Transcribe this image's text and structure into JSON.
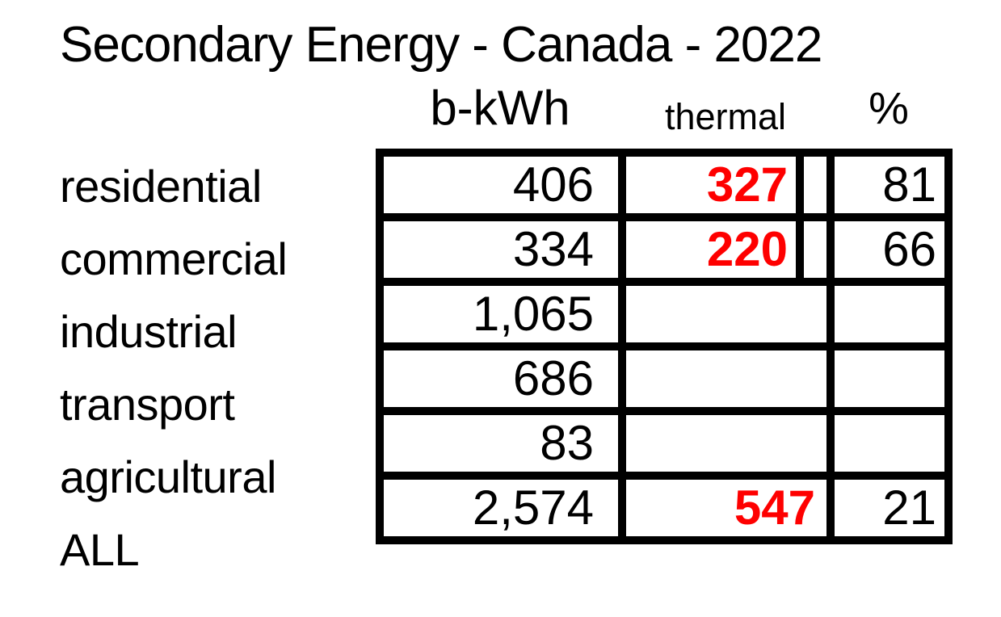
{
  "chart_data": {
    "type": "table",
    "title": "Secondary Energy - Canada - 2022",
    "columns": [
      "b-kWh",
      "thermal",
      "%"
    ],
    "rows": [
      {
        "label": "residential",
        "b_kwh": "406",
        "thermal": "327",
        "percent": "81"
      },
      {
        "label": "commercial",
        "b_kwh": "334",
        "thermal": "220",
        "percent": "66"
      },
      {
        "label": "industrial",
        "b_kwh": "1,065",
        "thermal": "",
        "percent": ""
      },
      {
        "label": "transport",
        "b_kwh": "686",
        "thermal": "",
        "percent": ""
      },
      {
        "label": "agricultural",
        "b_kwh": "83",
        "thermal": "",
        "percent": ""
      },
      {
        "label": "ALL",
        "b_kwh": "2,574",
        "thermal": "547",
        "percent": "21"
      }
    ],
    "numeric": {
      "b_kwh": [
        406,
        334,
        1065,
        686,
        83,
        2574
      ],
      "thermal": [
        327,
        220,
        null,
        null,
        null,
        547
      ],
      "percent": [
        81,
        66,
        null,
        null,
        null,
        21
      ]
    }
  },
  "colors": {
    "thermal_value_red": "#fe0000",
    "text_black": "#000000",
    "table_border": "#000000",
    "background": "#ffffff"
  }
}
